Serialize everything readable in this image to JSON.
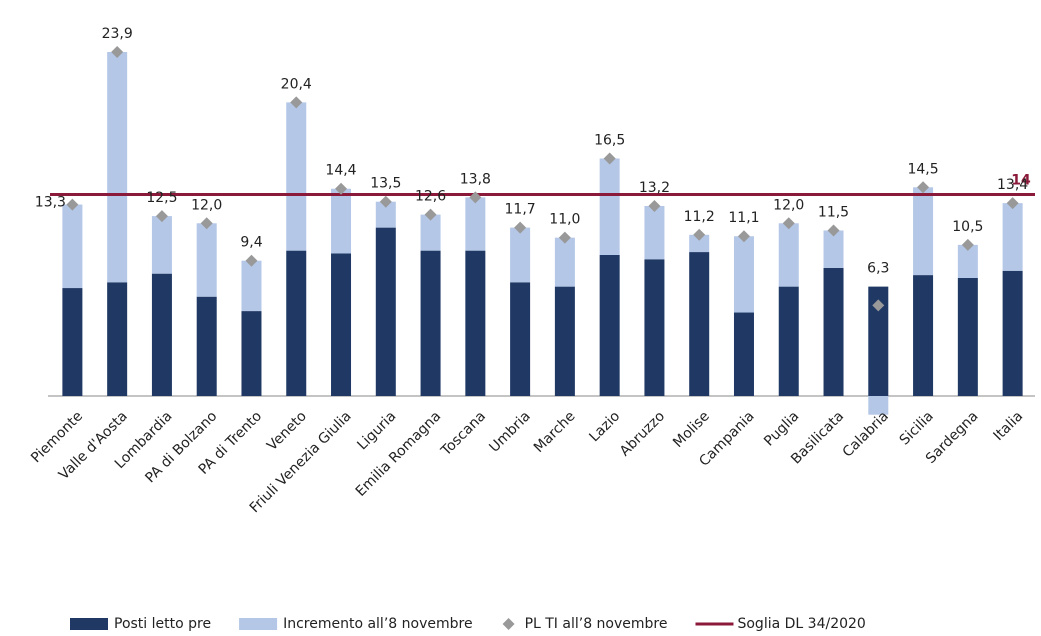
{
  "chart_data": {
    "type": "stacked-bar-marker",
    "categories": [
      "Piemonte",
      "Valle d'Aosta",
      "Lombardia",
      "PA di Bolzano",
      "PA di Trento",
      "Veneto",
      "Friuli Venezia Giulia",
      "Liguria",
      "Emilia Romagna",
      "Toscana",
      "Umbria",
      "Marche",
      "Lazio",
      "Abruzzo",
      "Molise",
      "Campania",
      "Puglia",
      "Basilicata",
      "Calabria",
      "Sicilia",
      "Sardegna",
      "Italia"
    ],
    "series": [
      {
        "name": "Posti letto pre",
        "color": "#1f3864",
        "values": [
          7.5,
          7.9,
          8.5,
          6.9,
          5.9,
          10.1,
          9.9,
          11.7,
          10.1,
          10.1,
          7.9,
          7.6,
          9.8,
          9.5,
          10.0,
          5.8,
          7.6,
          8.9,
          7.6,
          8.4,
          8.2,
          8.7
        ]
      },
      {
        "name": "Incremento all’8 novembre",
        "color": "#b4c7e7",
        "values": [
          5.8,
          16.0,
          4.0,
          5.1,
          3.5,
          10.3,
          4.5,
          1.8,
          2.5,
          3.7,
          3.8,
          3.4,
          6.7,
          3.7,
          1.2,
          5.3,
          4.4,
          2.6,
          -1.3,
          6.1,
          2.3,
          4.7
        ]
      },
      {
        "name": "PL TI all’8 novembre",
        "color": "#999999",
        "values": [
          13.3,
          23.9,
          12.5,
          12.0,
          9.4,
          20.4,
          14.4,
          13.5,
          12.6,
          13.8,
          11.7,
          11.0,
          16.5,
          13.2,
          11.2,
          11.1,
          12.0,
          11.5,
          6.3,
          14.5,
          10.5,
          13.4
        ],
        "value_labels": [
          "13,3",
          "23,9",
          "12,5",
          "12,0",
          "9,4",
          "20,4",
          "14,4",
          "13,5",
          "12,6",
          "13,8",
          "11,7",
          "11,0",
          "16,5",
          "13,2",
          "11,2",
          "11,1",
          "12,0",
          "11,5",
          "6,3",
          "14,5",
          "10,5",
          "13,4"
        ]
      }
    ],
    "threshold": {
      "name": "Soglia DL 34/2020",
      "color": "#8b1a3a",
      "value": 14
    }
  }
}
